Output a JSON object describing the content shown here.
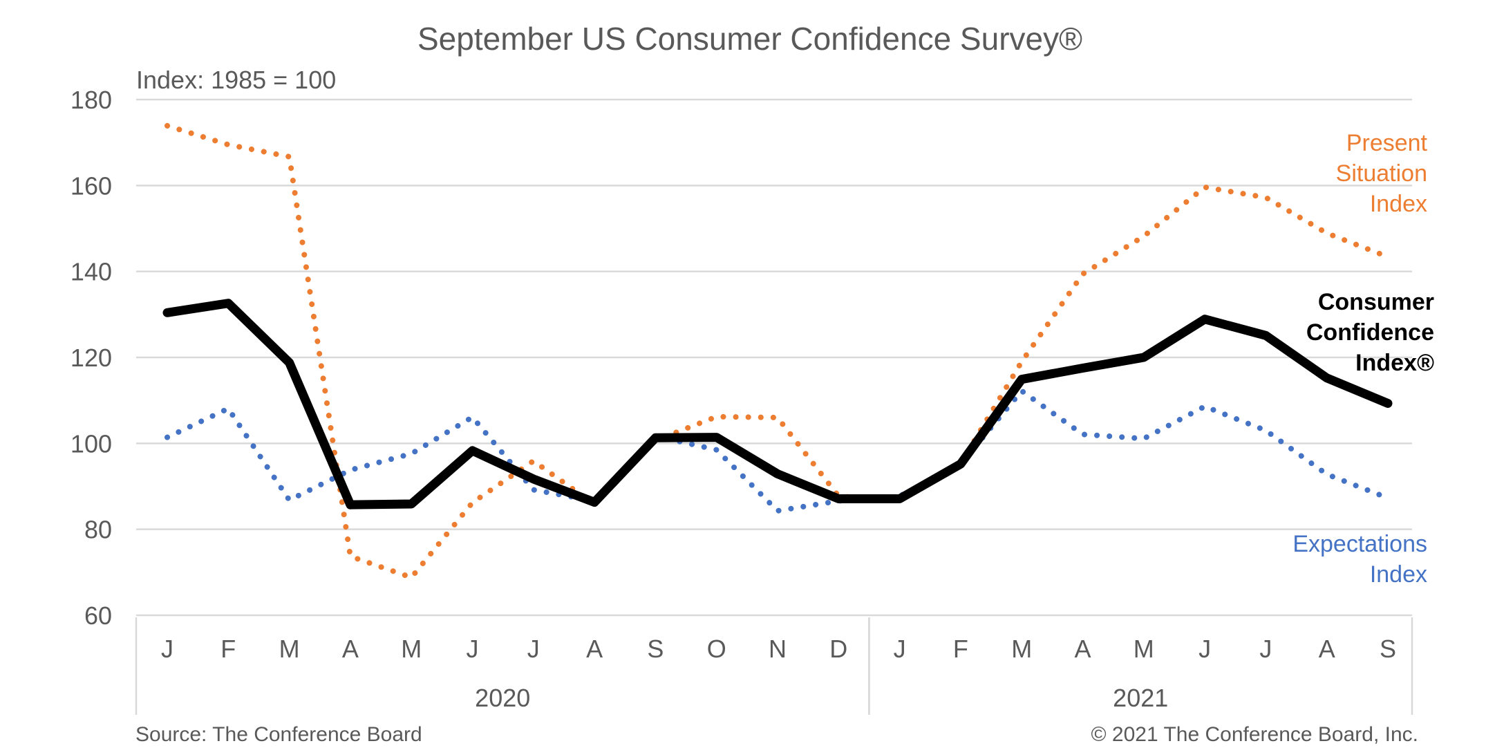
{
  "colors": {
    "present_situation": "#ED7D31",
    "expectations": "#4472C4",
    "consumer_confidence": "#000000",
    "grid": "#D9D9D9",
    "text": "#595959"
  },
  "texts": {
    "title": "September US Consumer Confidence Survey®",
    "subtitle": "Index: 1985 = 100",
    "source": "Source: The Conference Board",
    "copyright": "© 2021 The Conference Board, Inc."
  },
  "chart_data": {
    "type": "line",
    "title": "September US Consumer Confidence Survey®",
    "ylabel": "Index: 1985 = 100",
    "ylim": [
      60,
      180
    ],
    "yticks": [
      60,
      80,
      100,
      120,
      140,
      160,
      180
    ],
    "grid": true,
    "x": [
      "J",
      "F",
      "M",
      "A",
      "M",
      "J",
      "J",
      "A",
      "S",
      "O",
      "N",
      "D",
      "J",
      "F",
      "M",
      "A",
      "M",
      "J",
      "J",
      "A",
      "S"
    ],
    "year_groups": [
      {
        "label": "2020",
        "count": 12
      },
      {
        "label": "2021",
        "count": 9
      }
    ],
    "series": [
      {
        "key": "present_situation",
        "label_lines": [
          "Present",
          "Situation",
          "Index"
        ],
        "style": "dotted",
        "values": [
          173.9,
          169.5,
          166.7,
          73.7,
          68.8,
          86.2,
          95.9,
          85.8,
          100.7,
          106.2,
          106.0,
          87.7,
          86.8,
          95.3,
          119.0,
          139.4,
          148.2,
          159.6,
          157.2,
          148.9,
          143.4
        ]
      },
      {
        "key": "consumer_confidence",
        "label_lines": [
          "Consumer",
          "Confidence",
          "Index®"
        ],
        "style": "solid",
        "values": [
          130.4,
          132.6,
          118.8,
          85.7,
          85.9,
          98.3,
          91.7,
          86.3,
          101.3,
          101.4,
          92.9,
          87.1,
          87.1,
          95.2,
          114.9,
          117.5,
          120.0,
          128.9,
          125.1,
          115.2,
          109.3
        ]
      },
      {
        "key": "expectations",
        "label_lines": [
          "Expectations",
          "Index"
        ],
        "style": "dotted",
        "values": [
          101.4,
          108.1,
          86.8,
          93.8,
          97.6,
          106.1,
          89.2,
          86.6,
          101.7,
          98.5,
          84.3,
          86.6,
          87.7,
          95.2,
          112.2,
          102.1,
          101.1,
          108.6,
          103.0,
          92.8,
          87.3
        ]
      }
    ]
  }
}
